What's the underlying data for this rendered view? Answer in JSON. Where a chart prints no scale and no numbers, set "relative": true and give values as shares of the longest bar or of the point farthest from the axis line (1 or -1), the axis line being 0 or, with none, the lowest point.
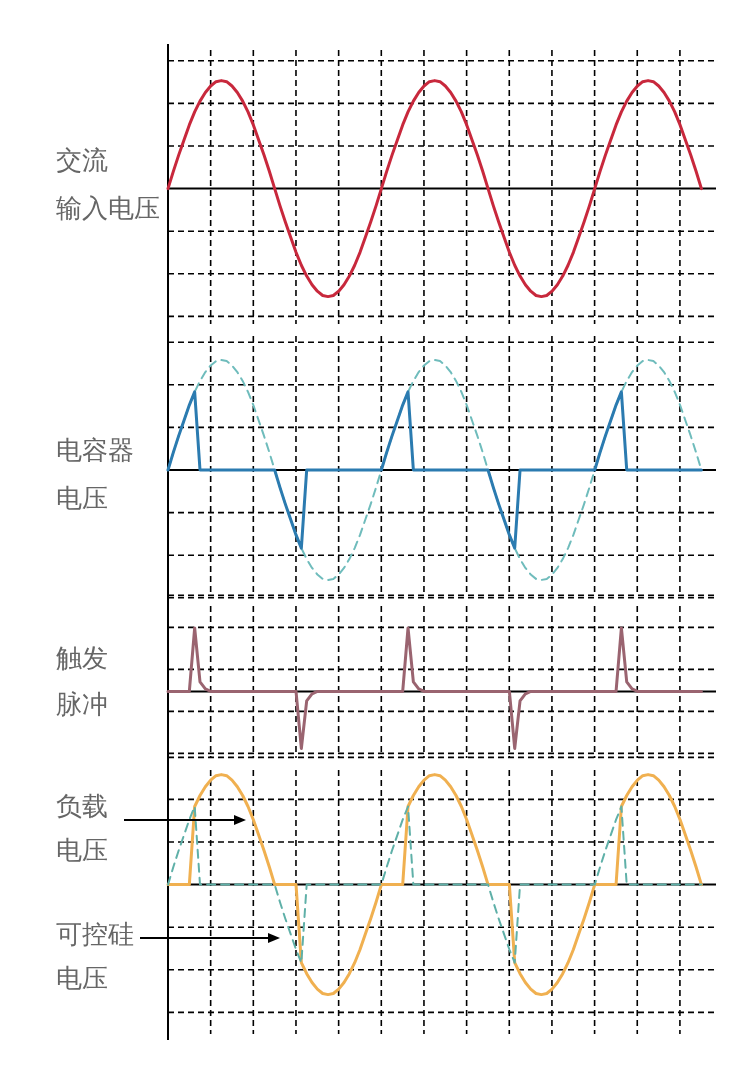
{
  "chart_data": [
    {
      "type": "line",
      "ylabel": "交流输入电压",
      "relative": true,
      "grid": true,
      "categories": [
        null,
        null,
        null,
        null,
        null,
        null,
        null,
        null,
        null,
        null,
        null,
        null,
        null,
        null,
        null,
        null,
        null,
        null,
        null,
        null,
        null,
        null,
        null,
        null,
        null,
        null,
        null,
        null,
        null,
        null,
        null,
        null,
        null,
        null,
        null,
        null,
        null,
        null,
        null,
        null,
        null,
        null,
        null,
        null,
        null,
        null,
        null,
        null,
        null,
        null,
        null,
        null,
        null,
        null,
        null,
        null,
        null,
        null,
        null,
        null,
        null,
        null,
        null,
        null,
        null,
        null,
        null,
        null,
        null,
        null,
        null,
        null,
        null,
        null,
        null,
        null,
        null,
        null,
        null,
        null,
        null,
        null,
        null,
        null,
        null,
        null,
        null,
        null,
        null,
        null,
        null,
        null,
        null,
        null,
        null,
        null,
        null,
        null,
        null,
        null,
        null
      ],
      "series": [
        {
          "color": "#c8283c",
          "line_style": "solid",
          "values": [
            0,
            0.16,
            0.31,
            0.45,
            0.59,
            0.71,
            0.81,
            0.89,
            0.95,
            0.99,
            1,
            0.99,
            0.95,
            0.89,
            0.81,
            0.71,
            0.59,
            0.45,
            0.31,
            0.16,
            0,
            -0.16,
            -0.31,
            -0.45,
            -0.59,
            -0.71,
            -0.81,
            -0.89,
            -0.95,
            -0.99,
            -1,
            -0.99,
            -0.95,
            -0.89,
            -0.81,
            -0.71,
            -0.59,
            -0.45,
            -0.31,
            -0.16,
            0,
            0.16,
            0.31,
            0.45,
            0.59,
            0.71,
            0.81,
            0.89,
            0.95,
            0.99,
            1,
            0.99,
            0.95,
            0.89,
            0.81,
            0.71,
            0.59,
            0.45,
            0.31,
            0.16,
            0,
            -0.16,
            -0.31,
            -0.45,
            -0.59,
            -0.71,
            -0.81,
            -0.89,
            -0.95,
            -0.99,
            -1,
            -0.99,
            -0.95,
            -0.89,
            -0.81,
            -0.71,
            -0.59,
            -0.45,
            -0.31,
            -0.16,
            0,
            0.16,
            0.31,
            0.45,
            0.59,
            0.71,
            0.81,
            0.89,
            0.95,
            0.99,
            1,
            0.99,
            0.95,
            0.89,
            0.81,
            0.71,
            0.59,
            0.45,
            0.31,
            0.16,
            0
          ]
        }
      ]
    },
    {
      "type": "line",
      "ylabel": "电容器电压",
      "relative": true,
      "grid": true,
      "categories": [
        null,
        null,
        null,
        null,
        null,
        null,
        null,
        null,
        null,
        null,
        null,
        null,
        null,
        null,
        null,
        null,
        null,
        null,
        null,
        null,
        null,
        null,
        null,
        null,
        null,
        null,
        null,
        null,
        null,
        null,
        null,
        null,
        null,
        null,
        null,
        null,
        null,
        null,
        null,
        null,
        null,
        null,
        null,
        null,
        null,
        null,
        null,
        null,
        null,
        null,
        null,
        null,
        null,
        null,
        null,
        null,
        null,
        null,
        null,
        null,
        null,
        null,
        null,
        null,
        null,
        null,
        null,
        null,
        null,
        null,
        null,
        null,
        null,
        null,
        null,
        null,
        null,
        null,
        null,
        null,
        null,
        null,
        null,
        null,
        null,
        null,
        null,
        null,
        null,
        null,
        null,
        null,
        null,
        null,
        null,
        null,
        null,
        null,
        null,
        null,
        null
      ],
      "series": [
        {
          "color": "#6fbcbc",
          "line_style": "dashed",
          "values": [
            0,
            0.16,
            0.31,
            0.45,
            0.59,
            0.71,
            0.81,
            0.89,
            0.95,
            0.99,
            1,
            0.99,
            0.95,
            0.89,
            0.81,
            0.71,
            0.59,
            0.45,
            0.31,
            0.16,
            0,
            -0.16,
            -0.31,
            -0.45,
            -0.59,
            -0.71,
            -0.81,
            -0.89,
            -0.95,
            -0.99,
            -1,
            -0.99,
            -0.95,
            -0.89,
            -0.81,
            -0.71,
            -0.59,
            -0.45,
            -0.31,
            -0.16,
            0,
            0.16,
            0.31,
            0.45,
            0.59,
            0.71,
            0.81,
            0.89,
            0.95,
            0.99,
            1,
            0.99,
            0.95,
            0.89,
            0.81,
            0.71,
            0.59,
            0.45,
            0.31,
            0.16,
            0,
            -0.16,
            -0.31,
            -0.45,
            -0.59,
            -0.71,
            -0.81,
            -0.89,
            -0.95,
            -0.99,
            -1,
            -0.99,
            -0.95,
            -0.89,
            -0.81,
            -0.71,
            -0.59,
            -0.45,
            -0.31,
            -0.16,
            0,
            0.16,
            0.31,
            0.45,
            0.59,
            0.71,
            0.81,
            0.89,
            0.95,
            0.99,
            1,
            0.99,
            0.95,
            0.89,
            0.81,
            0.71,
            0.59,
            0.45,
            0.31,
            0.16,
            0
          ]
        },
        {
          "color": "#2b7bb0",
          "line_style": "solid",
          "values": [
            0,
            0.16,
            0.31,
            0.45,
            0.59,
            0.71,
            0,
            0,
            0,
            0,
            0,
            0,
            0,
            0,
            0,
            0,
            0,
            0,
            0,
            0,
            0,
            -0.16,
            -0.31,
            -0.45,
            -0.59,
            -0.71,
            0,
            0,
            0,
            0,
            0,
            0,
            0,
            0,
            0,
            0,
            0,
            0,
            0,
            0,
            0,
            0.16,
            0.31,
            0.45,
            0.59,
            0.71,
            0,
            0,
            0,
            0,
            0,
            0,
            0,
            0,
            0,
            0,
            0,
            0,
            0,
            0,
            0,
            -0.16,
            -0.31,
            -0.45,
            -0.59,
            -0.71,
            0,
            0,
            0,
            0,
            0,
            0,
            0,
            0,
            0,
            0,
            0,
            0,
            0,
            0,
            0,
            0.16,
            0.31,
            0.45,
            0.59,
            0.71,
            0,
            0,
            0,
            0,
            0,
            0,
            0,
            0,
            0,
            0,
            0,
            0,
            0,
            0,
            0
          ]
        }
      ]
    },
    {
      "type": "line",
      "ylabel": "触发脉冲",
      "relative": true,
      "grid": true,
      "categories": [
        null,
        null,
        null,
        null,
        null,
        null,
        null,
        null,
        null,
        null,
        null,
        null,
        null,
        null,
        null,
        null,
        null,
        null,
        null,
        null,
        null,
        null,
        null,
        null,
        null,
        null,
        null,
        null,
        null,
        null,
        null,
        null,
        null,
        null,
        null,
        null,
        null,
        null,
        null,
        null,
        null,
        null,
        null,
        null,
        null,
        null,
        null,
        null,
        null,
        null,
        null,
        null,
        null,
        null,
        null,
        null,
        null,
        null,
        null,
        null,
        null,
        null,
        null,
        null,
        null,
        null,
        null,
        null,
        null,
        null,
        null,
        null,
        null,
        null,
        null,
        null,
        null,
        null,
        null,
        null,
        null,
        null,
        null,
        null,
        null,
        null,
        null,
        null,
        null,
        null,
        null,
        null,
        null,
        null,
        null,
        null,
        null,
        null,
        null,
        null,
        null
      ],
      "series": [
        {
          "color": "#9a6470",
          "line_style": "solid",
          "values": [
            0,
            0,
            0,
            0,
            0,
            1,
            0.15,
            0.04,
            0,
            0,
            0,
            0,
            0,
            0,
            0,
            0,
            0,
            0,
            0,
            0,
            0,
            0,
            0,
            0,
            0,
            -0.9,
            -0.15,
            -0.04,
            0,
            0,
            0,
            0,
            0,
            0,
            0,
            0,
            0,
            0,
            0,
            0,
            0,
            0,
            0,
            0,
            0,
            1,
            0.15,
            0.04,
            0,
            0,
            0,
            0,
            0,
            0,
            0,
            0,
            0,
            0,
            0,
            0,
            0,
            0,
            0,
            0,
            0,
            -0.9,
            -0.15,
            -0.04,
            0,
            0,
            0,
            0,
            0,
            0,
            0,
            0,
            0,
            0,
            0,
            0,
            0,
            0,
            0,
            0,
            0,
            1,
            0.15,
            0.04,
            0,
            0,
            0,
            0,
            0,
            0,
            0,
            0,
            0,
            0,
            0,
            0,
            0
          ]
        }
      ]
    },
    {
      "type": "line",
      "relative": true,
      "grid": true,
      "categories": [
        null,
        null,
        null,
        null,
        null,
        null,
        null,
        null,
        null,
        null,
        null,
        null,
        null,
        null,
        null,
        null,
        null,
        null,
        null,
        null,
        null,
        null,
        null,
        null,
        null,
        null,
        null,
        null,
        null,
        null,
        null,
        null,
        null,
        null,
        null,
        null,
        null,
        null,
        null,
        null,
        null,
        null,
        null,
        null,
        null,
        null,
        null,
        null,
        null,
        null,
        null,
        null,
        null,
        null,
        null,
        null,
        null,
        null,
        null,
        null,
        null,
        null,
        null,
        null,
        null,
        null,
        null,
        null,
        null,
        null,
        null,
        null,
        null,
        null,
        null,
        null,
        null,
        null,
        null,
        null,
        null,
        null,
        null,
        null,
        null,
        null,
        null,
        null,
        null,
        null,
        null,
        null,
        null,
        null,
        null,
        null,
        null,
        null,
        null,
        null,
        null
      ],
      "series": [
        {
          "name": "负载电压",
          "color": "#f0b050",
          "line_style": "solid",
          "values": [
            0,
            0,
            0,
            0,
            0,
            0.71,
            0.81,
            0.89,
            0.95,
            0.99,
            1,
            0.99,
            0.95,
            0.89,
            0.81,
            0.71,
            0.59,
            0.45,
            0.31,
            0.16,
            0,
            0,
            0,
            0,
            0,
            -0.71,
            -0.81,
            -0.89,
            -0.95,
            -0.99,
            -1,
            -0.99,
            -0.95,
            -0.89,
            -0.81,
            -0.71,
            -0.59,
            -0.45,
            -0.31,
            -0.16,
            0,
            0,
            0,
            0,
            0,
            0.71,
            0.81,
            0.89,
            0.95,
            0.99,
            1,
            0.99,
            0.95,
            0.89,
            0.81,
            0.71,
            0.59,
            0.45,
            0.31,
            0.16,
            0,
            0,
            0,
            0,
            0,
            -0.71,
            -0.81,
            -0.89,
            -0.95,
            -0.99,
            -1,
            -0.99,
            -0.95,
            -0.89,
            -0.81,
            -0.71,
            -0.59,
            -0.45,
            -0.31,
            -0.16,
            0,
            0,
            0,
            0,
            0,
            0.71,
            0.81,
            0.89,
            0.95,
            0.99,
            1,
            0.99,
            0.95,
            0.89,
            0.81,
            0.71,
            0.59,
            0.45,
            0.31,
            0.16,
            0
          ]
        },
        {
          "name": "可控硅电压",
          "color": "#5fb0a8",
          "line_style": "dashed",
          "values": [
            0,
            0.16,
            0.31,
            0.45,
            0.59,
            0.71,
            0,
            0,
            0,
            0,
            0,
            0,
            0,
            0,
            0,
            0,
            0,
            0,
            0,
            0,
            0,
            -0.16,
            -0.31,
            -0.45,
            -0.59,
            -0.71,
            0,
            0,
            0,
            0,
            0,
            0,
            0,
            0,
            0,
            0,
            0,
            0,
            0,
            0,
            0,
            0.16,
            0.31,
            0.45,
            0.59,
            0.71,
            0,
            0,
            0,
            0,
            0,
            0,
            0,
            0,
            0,
            0,
            0,
            0,
            0,
            0,
            0,
            -0.16,
            -0.31,
            -0.45,
            -0.59,
            -0.71,
            0,
            0,
            0,
            0,
            0,
            0,
            0,
            0,
            0,
            0,
            0,
            0,
            0,
            0,
            0,
            0.16,
            0.31,
            0.45,
            0.59,
            0.71,
            0,
            0,
            0,
            0,
            0,
            0,
            0,
            0,
            0,
            0,
            0,
            0,
            0,
            0,
            0
          ]
        }
      ]
    }
  ]
}
